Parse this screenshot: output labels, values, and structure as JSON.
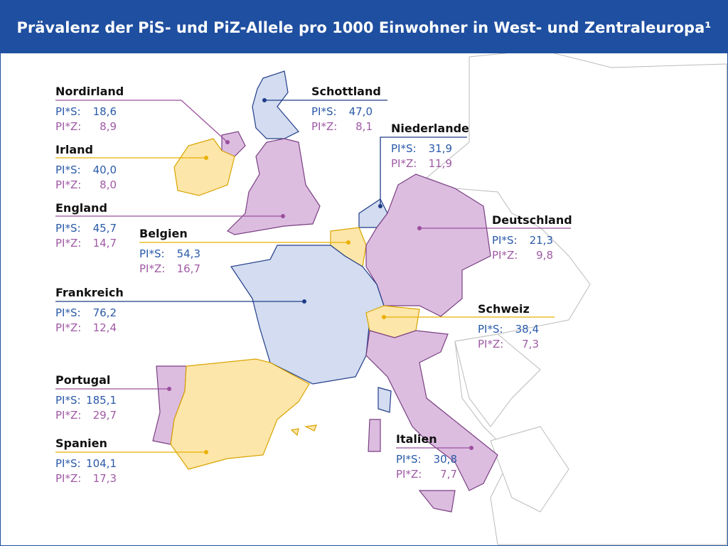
{
  "header": {
    "title": "Prävalenz der PiS- und PiZ-Allele pro 1000 Einwohner in West- und Zentraleuropa¹"
  },
  "countries": [
    {
      "name": "Nordirland",
      "pis_label": "PI*S:",
      "pis": "18,6",
      "piz_label": "PI*Z:",
      "piz": "8,9"
    },
    {
      "name": "Schottland",
      "pis_label": "PI*S:",
      "pis": "47,0",
      "piz_label": "PI*Z:",
      "piz": "8,1"
    },
    {
      "name": "Irland",
      "pis_label": "PI*S:",
      "pis": "40,0",
      "piz_label": "PI*Z:",
      "piz": "8,0"
    },
    {
      "name": "Niederlande",
      "pis_label": "PI*S:",
      "pis": "31,9",
      "piz_label": "PI*Z:",
      "piz": "11,9"
    },
    {
      "name": "England",
      "pis_label": "PI*S:",
      "pis": "45,7",
      "piz_label": "PI*Z:",
      "piz": "14,7"
    },
    {
      "name": "Belgien",
      "pis_label": "PI*S:",
      "pis": "54,3",
      "piz_label": "PI*Z:",
      "piz": "16,7"
    },
    {
      "name": "Deutschland",
      "pis_label": "PI*S:",
      "pis": "21,3",
      "piz_label": "PI*Z:",
      "piz": "9,8"
    },
    {
      "name": "Frankreich",
      "pis_label": "PI*S:",
      "pis": "76,2",
      "piz_label": "PI*Z:",
      "piz": "12,4"
    },
    {
      "name": "Schweiz",
      "pis_label": "PI*S:",
      "pis": "38,4",
      "piz_label": "PI*Z:",
      "piz": "7,3"
    },
    {
      "name": "Portugal",
      "pis_label": "PI*S:",
      "pis": "185,1",
      "piz_label": "PI*Z:",
      "piz": "29,7"
    },
    {
      "name": "Spanien",
      "pis_label": "PI*S:",
      "pis": "104,1",
      "piz_label": "PI*Z:",
      "piz": "17,3"
    },
    {
      "name": "Italien",
      "pis_label": "PI*S:",
      "pis": "30,8",
      "piz_label": "PI*Z:",
      "piz": "7,7"
    }
  ]
}
